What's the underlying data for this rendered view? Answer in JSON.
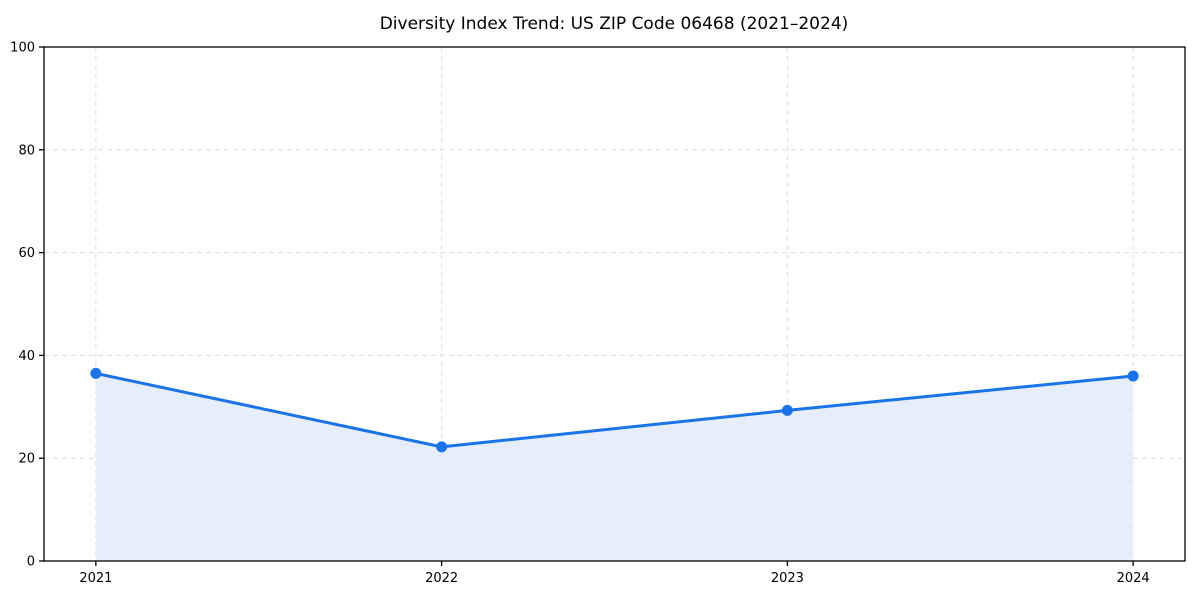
{
  "chart_data": {
    "type": "area",
    "title": "Diversity Index Trend: US ZIP Code 06468 (2021–2024)",
    "xlabel": "",
    "ylabel": "",
    "x": [
      2021,
      2022,
      2023,
      2024
    ],
    "categories": [
      "2021",
      "2022",
      "2023",
      "2024"
    ],
    "series": [
      {
        "name": "Diversity Index",
        "values": [
          36.5,
          22.2,
          29.3,
          36.0
        ]
      }
    ],
    "xticks": [
      2021,
      2022,
      2023,
      2024
    ],
    "yticks": [
      0,
      20,
      40,
      60,
      80,
      100
    ],
    "xlim": [
      2020.85,
      2024.15
    ],
    "ylim": [
      0,
      100
    ],
    "grid": true,
    "grid_style": "dashed",
    "legend": "none",
    "marker": "circle",
    "colors": {
      "line": "#1a73e8",
      "marker": "#1a73e8",
      "fill": "#e7eefb",
      "grid": "#dcdcdc",
      "axis": "#000000",
      "text": "#000000",
      "background": "#ffffff"
    }
  }
}
